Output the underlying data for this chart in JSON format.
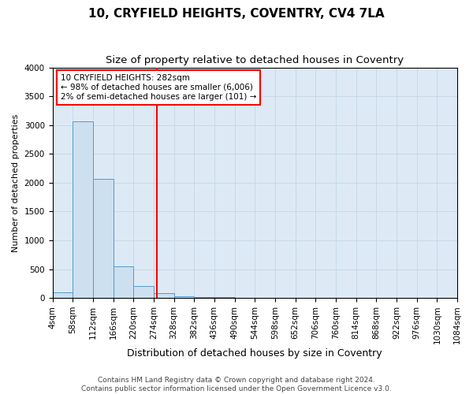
{
  "title": "10, CRYFIELD HEIGHTS, COVENTRY, CV4 7LA",
  "subtitle": "Size of property relative to detached houses in Coventry",
  "xlabel": "Distribution of detached houses by size in Coventry",
  "ylabel": "Number of detached properties",
  "footer_line1": "Contains HM Land Registry data © Crown copyright and database right 2024.",
  "footer_line2": "Contains public sector information licensed under the Open Government Licence v3.0.",
  "property_size": 282,
  "annotation_line1": "10 CRYFIELD HEIGHTS: 282sqm",
  "annotation_line2": "← 98% of detached houses are smaller (6,006)",
  "annotation_line3": "2% of semi-detached houses are larger (101) →",
  "bar_color": "#cce0f0",
  "bar_edge_color": "#5599cc",
  "vline_color": "red",
  "grid_color": "#c8d8e8",
  "bg_color": "#ddeaf5",
  "bin_edges": [
    4,
    58,
    112,
    166,
    220,
    274,
    328,
    382,
    436,
    490,
    544,
    598,
    652,
    706,
    760,
    814,
    868,
    922,
    976,
    1030,
    1084
  ],
  "bin_counts": [
    100,
    3060,
    2060,
    550,
    210,
    80,
    30,
    20,
    10,
    5,
    3,
    2,
    2,
    2,
    2,
    2,
    1,
    1,
    1,
    1
  ],
  "ylim": [
    0,
    4000
  ],
  "xlim": [
    4,
    1084
  ],
  "yticks": [
    0,
    500,
    1000,
    1500,
    2000,
    2500,
    3000,
    3500,
    4000
  ],
  "xtick_labels": [
    "4sqm",
    "58sqm",
    "112sqm",
    "166sqm",
    "220sqm",
    "274sqm",
    "328sqm",
    "382sqm",
    "436sqm",
    "490sqm",
    "544sqm",
    "598sqm",
    "652sqm",
    "706sqm",
    "760sqm",
    "814sqm",
    "868sqm",
    "922sqm",
    "976sqm",
    "1030sqm",
    "1084sqm"
  ],
  "title_fontsize": 11,
  "subtitle_fontsize": 9.5,
  "xlabel_fontsize": 9,
  "ylabel_fontsize": 8,
  "tick_fontsize": 7.5,
  "annotation_fontsize": 7.5,
  "footer_fontsize": 6.5
}
